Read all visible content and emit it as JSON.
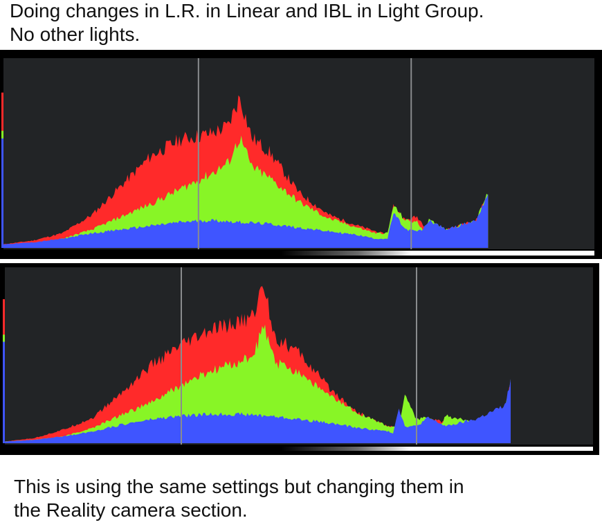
{
  "captions": {
    "top_line1": "Doing changes in L.R. in Linear and IBL in Light Group.",
    "top_line2": "No other lights.",
    "bottom_line1": "This is using the same settings but changing them in",
    "bottom_line2": "the Reality camera section."
  },
  "colors": {
    "background": "#222426",
    "red": "#ff2a2a",
    "green": "#88f526",
    "blue": "#3f55ff",
    "guide_line": "#8a8c8e"
  },
  "chart_data": [
    {
      "type": "area",
      "title": "",
      "xlabel": "",
      "ylabel": "",
      "x_range": [
        0,
        1
      ],
      "y_range": [
        0,
        1
      ],
      "grid": false,
      "guide_lines_x": [
        0.33,
        0.69
      ],
      "series": [
        {
          "color": "red",
          "x": [
            0,
            0.05,
            0.1,
            0.15,
            0.2,
            0.25,
            0.3,
            0.35,
            0.38,
            0.4,
            0.42,
            0.45,
            0.5,
            0.55,
            0.6,
            0.65,
            0.66,
            0.68,
            0.7,
            0.72,
            0.75,
            0.8,
            0.82
          ],
          "y": [
            0.02,
            0.04,
            0.08,
            0.18,
            0.34,
            0.5,
            0.59,
            0.62,
            0.66,
            0.82,
            0.6,
            0.52,
            0.3,
            0.18,
            0.12,
            0.07,
            0.23,
            0.15,
            0.17,
            0.09,
            0.1,
            0.15,
            0.3
          ]
        },
        {
          "color": "green",
          "x": [
            0,
            0.05,
            0.1,
            0.15,
            0.2,
            0.25,
            0.3,
            0.35,
            0.38,
            0.4,
            0.42,
            0.45,
            0.5,
            0.55,
            0.6,
            0.63,
            0.65,
            0.66,
            0.68,
            0.7,
            0.71,
            0.72,
            0.75,
            0.8,
            0.82
          ],
          "y": [
            0.01,
            0.02,
            0.05,
            0.1,
            0.17,
            0.24,
            0.32,
            0.4,
            0.46,
            0.6,
            0.44,
            0.38,
            0.25,
            0.16,
            0.11,
            0.08,
            0.08,
            0.23,
            0.15,
            0.14,
            0.1,
            0.15,
            0.1,
            0.15,
            0.3
          ]
        },
        {
          "color": "blue",
          "x": [
            0,
            0.05,
            0.1,
            0.15,
            0.2,
            0.25,
            0.3,
            0.35,
            0.4,
            0.45,
            0.5,
            0.55,
            0.6,
            0.63,
            0.65,
            0.66,
            0.68,
            0.7,
            0.71,
            0.72,
            0.75,
            0.8,
            0.82
          ],
          "y": [
            0.02,
            0.03,
            0.05,
            0.08,
            0.1,
            0.12,
            0.14,
            0.15,
            0.14,
            0.13,
            0.11,
            0.09,
            0.07,
            0.05,
            0.05,
            0.19,
            0.1,
            0.09,
            0.1,
            0.15,
            0.1,
            0.15,
            0.3
          ]
        }
      ]
    },
    {
      "type": "area",
      "title": "",
      "xlabel": "",
      "ylabel": "",
      "x_range": [
        0,
        1
      ],
      "y_range": [
        0,
        1
      ],
      "grid": false,
      "guide_lines_x": [
        0.3,
        0.7
      ],
      "series": [
        {
          "color": "red",
          "x": [
            0,
            0.05,
            0.1,
            0.15,
            0.2,
            0.25,
            0.3,
            0.35,
            0.4,
            0.42,
            0.44,
            0.46,
            0.5,
            0.55,
            0.6,
            0.65,
            0.67,
            0.68,
            0.7,
            0.72,
            0.75,
            0.8,
            0.85,
            0.86
          ],
          "y": [
            0.01,
            0.03,
            0.08,
            0.15,
            0.3,
            0.46,
            0.57,
            0.66,
            0.71,
            0.74,
            0.93,
            0.62,
            0.53,
            0.33,
            0.18,
            0.1,
            0.09,
            0.25,
            0.12,
            0.15,
            0.12,
            0.12,
            0.2,
            0.36
          ]
        },
        {
          "color": "green",
          "x": [
            0,
            0.05,
            0.1,
            0.15,
            0.2,
            0.25,
            0.3,
            0.35,
            0.4,
            0.42,
            0.44,
            0.46,
            0.5,
            0.55,
            0.6,
            0.65,
            0.67,
            0.68,
            0.7,
            0.72,
            0.74,
            0.75,
            0.8,
            0.85,
            0.86
          ],
          "y": [
            0.01,
            0.02,
            0.04,
            0.09,
            0.17,
            0.24,
            0.34,
            0.42,
            0.48,
            0.5,
            0.68,
            0.47,
            0.42,
            0.28,
            0.18,
            0.1,
            0.09,
            0.29,
            0.14,
            0.15,
            0.1,
            0.16,
            0.12,
            0.2,
            0.36
          ]
        },
        {
          "color": "blue",
          "x": [
            0,
            0.05,
            0.1,
            0.15,
            0.2,
            0.25,
            0.3,
            0.35,
            0.4,
            0.45,
            0.5,
            0.55,
            0.6,
            0.65,
            0.66,
            0.67,
            0.68,
            0.7,
            0.72,
            0.75,
            0.8,
            0.85,
            0.86
          ],
          "y": [
            0.01,
            0.02,
            0.04,
            0.07,
            0.11,
            0.14,
            0.16,
            0.17,
            0.17,
            0.16,
            0.14,
            0.12,
            0.09,
            0.07,
            0.06,
            0.21,
            0.1,
            0.1,
            0.15,
            0.1,
            0.14,
            0.22,
            0.36
          ]
        }
      ]
    }
  ]
}
